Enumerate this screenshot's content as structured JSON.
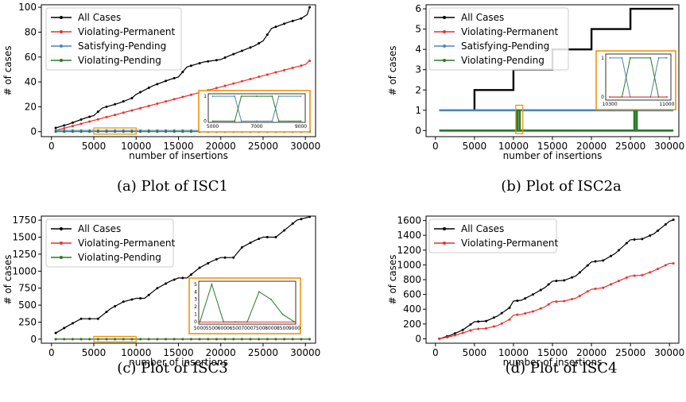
{
  "chart_data": [
    {
      "type": "line",
      "caption": "(a) Plot of ISC1",
      "xlabel": "number of insertions",
      "ylabel": "# of cases",
      "xlim": [
        -1200,
        31200
      ],
      "ylim": [
        -4,
        102
      ],
      "xticks": [
        0,
        5000,
        10000,
        15000,
        20000,
        25000,
        30000
      ],
      "yticks": [
        0,
        20,
        40,
        60,
        80,
        100
      ],
      "legend": "top-left",
      "series": [
        {
          "name": "All Cases",
          "color": "#000000",
          "marker": true,
          "x": [
            500,
            2000,
            4000,
            5000,
            6000,
            8000,
            9500,
            10000,
            12000,
            14000,
            15000,
            16000,
            18000,
            20000,
            21000,
            24000,
            25000,
            26000,
            28000,
            29500,
            30200,
            30500
          ],
          "y": [
            3,
            6,
            11,
            13,
            19,
            23,
            27,
            30,
            37,
            42,
            44,
            52,
            56,
            58,
            61,
            69,
            73,
            83,
            88,
            91,
            94,
            100
          ]
        },
        {
          "name": "Violating-Permanent",
          "color": "#e8312f",
          "marker": true,
          "x": [
            500,
            5000,
            10000,
            15000,
            20000,
            25000,
            30000,
            30500
          ],
          "y": [
            1,
            9,
            18,
            27,
            36,
            45,
            54,
            57
          ]
        },
        {
          "name": "Satisfying-Pending",
          "color": "#4a86b5",
          "marker": true,
          "x": [
            500,
            30500
          ],
          "y": [
            1,
            1
          ]
        },
        {
          "name": "Violating-Pending",
          "color": "#2a7a2a",
          "marker": true,
          "x": [
            500,
            30500
          ],
          "y": [
            0,
            0
          ]
        }
      ],
      "inset": {
        "xticks": [
          "5000",
          "7000",
          "9000"
        ],
        "yticks": [
          "0",
          "1"
        ],
        "series": [
          {
            "color": "#4a86b5",
            "x": [
              5000,
              6000,
              6300,
              7000,
              7700,
              8000,
              9000
            ],
            "y": [
              1,
              1,
              0,
              0,
              0,
              1,
              1
            ]
          },
          {
            "color": "#2a7a2a",
            "x": [
              5000,
              6000,
              6300,
              7000,
              7700,
              8000,
              9000
            ],
            "y": [
              0,
              0,
              1,
              1,
              1,
              0,
              0
            ]
          }
        ]
      }
    },
    {
      "type": "line",
      "caption": "(b) Plot of ISC2a",
      "xlabel": "number of insertions",
      "ylabel": "# of cases",
      "xlim": [
        -1200,
        31200
      ],
      "ylim": [
        -0.3,
        6.2
      ],
      "xticks": [
        0,
        5000,
        10000,
        15000,
        20000,
        25000,
        30000
      ],
      "yticks": [
        0,
        1,
        2,
        3,
        4,
        5,
        6
      ],
      "legend": "top-left",
      "series": [
        {
          "name": "All Cases",
          "color": "#000000",
          "marker": false,
          "x": [
            500,
            5000,
            5000,
            10000,
            10000,
            15000,
            15000,
            20000,
            20000,
            25000,
            25000,
            30500
          ],
          "y": [
            1,
            1,
            2,
            2,
            3,
            3,
            4,
            4,
            5,
            5,
            6,
            6
          ]
        },
        {
          "name": "Violating-Permanent",
          "color": "#e8312f",
          "marker": false,
          "x": [
            500,
            30500
          ],
          "y": [
            0,
            0
          ]
        },
        {
          "name": "Satisfying-Pending",
          "color": "#4a86b5",
          "marker": false,
          "x": [
            500,
            10500,
            10500,
            10800,
            10800,
            25500,
            25500,
            25800,
            25800,
            30500
          ],
          "y": [
            1,
            1,
            0,
            0,
            1,
            1,
            0,
            0,
            1,
            1
          ]
        },
        {
          "name": "Violating-Pending",
          "color": "#2a7a2a",
          "marker": false,
          "x": [
            500,
            10500,
            10500,
            10800,
            10800,
            25500,
            25500,
            25800,
            25800,
            30500
          ],
          "y": [
            0,
            0,
            1,
            1,
            0,
            0,
            1,
            1,
            0,
            0
          ]
        }
      ],
      "inset": {
        "xticks": [
          "10300",
          "11000"
        ],
        "yticks": [
          "0",
          "1"
        ],
        "series": [
          {
            "color": "#4a86b5",
            "x": [
              10300,
              10450,
              10550,
              10800,
              10900,
              11000
            ],
            "y": [
              1,
              1,
              0,
              0,
              1,
              1
            ]
          },
          {
            "color": "#2a7a2a",
            "x": [
              10300,
              10450,
              10550,
              10800,
              10900,
              11000
            ],
            "y": [
              0,
              0,
              1,
              1,
              0,
              0
            ]
          },
          {
            "color": "#e8312f",
            "x": [
              10300,
              11000
            ],
            "y": [
              0,
              0
            ]
          }
        ]
      }
    },
    {
      "type": "line",
      "caption": "(c) Plot of ISC3",
      "xlabel": "number of insertions",
      "ylabel": "# of cases",
      "xlim": [
        -1200,
        31200
      ],
      "ylim": [
        -60,
        1810
      ],
      "xticks": [
        0,
        5000,
        10000,
        15000,
        20000,
        25000,
        30000
      ],
      "yticks": [
        0,
        250,
        500,
        750,
        1000,
        1250,
        1500,
        1750
      ],
      "legend": "top-left",
      "series": [
        {
          "name": "All Cases",
          "color": "#000000",
          "marker": true,
          "x": [
            500,
            2000,
            3500,
            5500,
            7000,
            8500,
            10000,
            11000,
            12500,
            14000,
            15000,
            16000,
            17500,
            19000,
            20000,
            21500,
            22500,
            24000,
            25000,
            26500,
            28000,
            29000,
            30500
          ],
          "y": [
            90,
            200,
            300,
            300,
            450,
            550,
            600,
            600,
            750,
            850,
            900,
            900,
            1050,
            1150,
            1200,
            1200,
            1350,
            1450,
            1500,
            1500,
            1650,
            1750,
            1800
          ]
        },
        {
          "name": "Violating-Permanent",
          "color": "#e8312f",
          "marker": true,
          "x": [
            500,
            30500
          ],
          "y": [
            0,
            0
          ]
        },
        {
          "name": "Violating-Pending",
          "color": "#2a7a2a",
          "marker": true,
          "x": [
            500,
            30500
          ],
          "y": [
            0,
            0
          ]
        }
      ],
      "inset": {
        "xticks": [
          "5000",
          "5500",
          "6000",
          "6500",
          "7000",
          "7500",
          "8000",
          "8500",
          "9000"
        ],
        "yticks": [
          "0",
          "1",
          "2",
          "3",
          "4",
          "5"
        ],
        "series": [
          {
            "color": "#2a7a2a",
            "x": [
              5000,
              5500,
              6000,
              6500,
              7000,
              7500,
              8000,
              8500,
              9000
            ],
            "y": [
              0,
              5,
              0,
              0,
              0,
              4,
              3,
              1,
              0
            ]
          },
          {
            "color": "#e8312f",
            "x": [
              5000,
              9000
            ],
            "y": [
              0,
              0
            ]
          }
        ]
      }
    },
    {
      "type": "line",
      "caption": "(d) Plot of ISC4",
      "xlabel": "number of insertions",
      "ylabel": "# of cases",
      "xlim": [
        -1200,
        31200
      ],
      "ylim": [
        -60,
        1660
      ],
      "xticks": [
        0,
        5000,
        10000,
        15000,
        20000,
        25000,
        30000
      ],
      "yticks": [
        0,
        200,
        400,
        600,
        800,
        1000,
        1200,
        1400,
        1600
      ],
      "legend": "top-left",
      "series": [
        {
          "name": "All Cases",
          "color": "#000000",
          "marker": true,
          "x": [
            500,
            2000,
            3500,
            5000,
            6500,
            8000,
            9500,
            10000,
            11000,
            12500,
            14000,
            15000,
            16500,
            18000,
            20000,
            21500,
            23000,
            25000,
            26500,
            28000,
            30000,
            30500
          ],
          "y": [
            0,
            50,
            120,
            230,
            240,
            310,
            420,
            510,
            520,
            600,
            690,
            780,
            790,
            850,
            1040,
            1060,
            1150,
            1340,
            1350,
            1420,
            1590,
            1610
          ]
        },
        {
          "name": "Violating-Permanent",
          "color": "#e8312f",
          "marker": true,
          "x": [
            500,
            2000,
            3500,
            5000,
            6500,
            8000,
            9500,
            10000,
            11000,
            12500,
            14000,
            15000,
            16500,
            18000,
            20000,
            21500,
            23000,
            25000,
            26500,
            28000,
            30000,
            30500
          ],
          "y": [
            0,
            30,
            80,
            130,
            140,
            180,
            260,
            320,
            330,
            370,
            430,
            500,
            510,
            550,
            670,
            690,
            760,
            850,
            860,
            920,
            1020,
            1020
          ]
        }
      ]
    }
  ]
}
